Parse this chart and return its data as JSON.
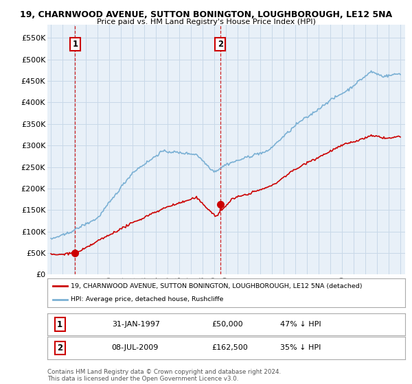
{
  "title": "19, CHARNWOOD AVENUE, SUTTON BONINGTON, LOUGHBOROUGH, LE12 5NA",
  "subtitle": "Price paid vs. HM Land Registry's House Price Index (HPI)",
  "ylim": [
    0,
    580000
  ],
  "yticks": [
    0,
    50000,
    100000,
    150000,
    200000,
    250000,
    300000,
    350000,
    400000,
    450000,
    500000,
    550000
  ],
  "ytick_labels": [
    "£0",
    "£50K",
    "£100K",
    "£150K",
    "£200K",
    "£250K",
    "£300K",
    "£350K",
    "£400K",
    "£450K",
    "£500K",
    "£550K"
  ],
  "sale1_x": 1997.083,
  "sale1_price": 50000,
  "sale2_x": 2009.542,
  "sale2_price": 162500,
  "property_color": "#cc0000",
  "hpi_color": "#7ab0d4",
  "plot_bg_color": "#e8f0f8",
  "legend_property": "19, CHARNWOOD AVENUE, SUTTON BONINGTON, LOUGHBOROUGH, LE12 5NA (detached)",
  "legend_hpi": "HPI: Average price, detached house, Rushcliffe",
  "copyright_text": "Contains HM Land Registry data © Crown copyright and database right 2024.\nThis data is licensed under the Open Government Licence v3.0.",
  "background_color": "#ffffff",
  "grid_color": "#c8d8e8"
}
